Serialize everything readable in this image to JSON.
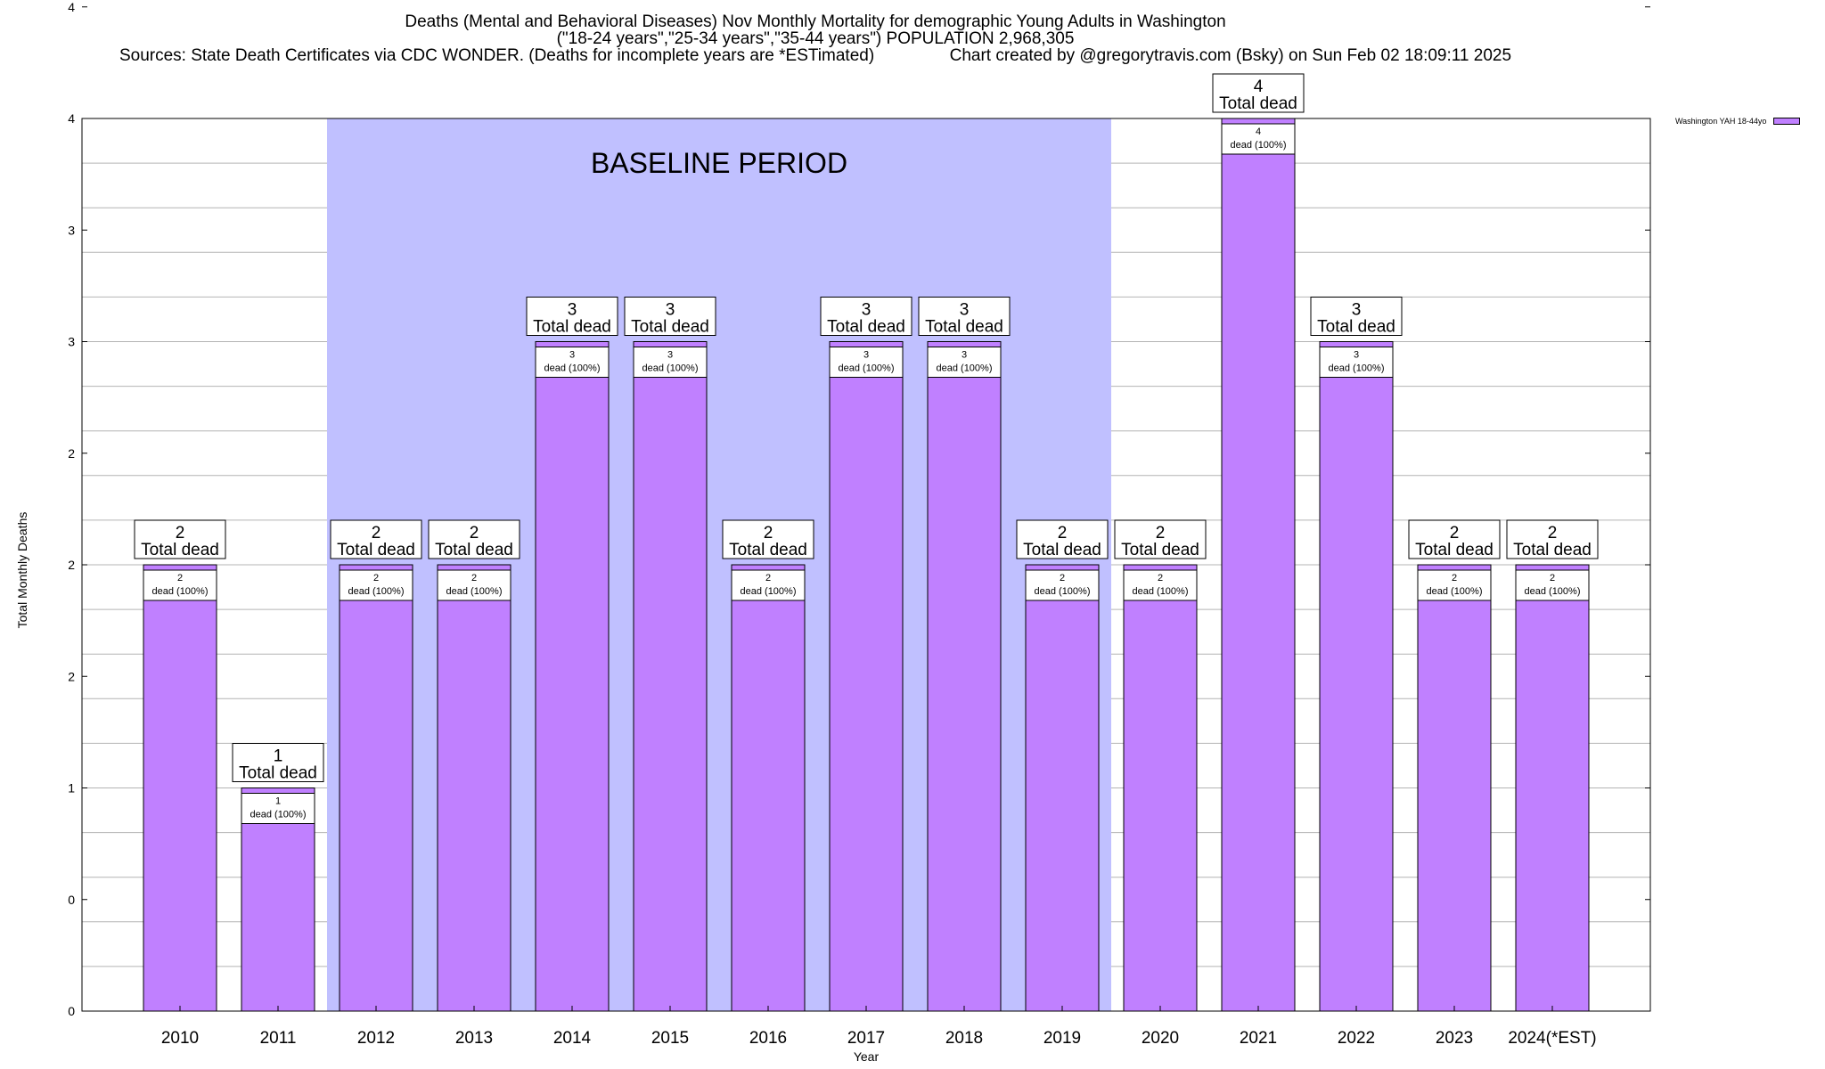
{
  "header": {
    "line1": "Deaths (Mental and Behavioral Diseases) Nov Monthly Mortality for demographic Young Adults in Washington",
    "line2": "(\"18-24 years\",\"25-34 years\",\"35-44 years\") POPULATION 2,968,305",
    "line3": "Sources: State Death Certificates via CDC WONDER. (Deaths for incomplete years are *ESTimated)                Chart created by @gregorytravis.com (Bsky) on Sun Feb 02 18:09:11 2025"
  },
  "legend": {
    "label": "Washington YAH 18-44yo",
    "color": "#c080ff"
  },
  "baseline": {
    "label": "BASELINE PERIOD",
    "from": "2012",
    "to": "2019",
    "color": "#c0c0ff"
  },
  "chart_data": {
    "type": "bar",
    "xlabel": "Year",
    "ylabel": "Total Monthly Deaths",
    "ylim": [
      0,
      4
    ],
    "y_tick_labels": [
      "0",
      "0",
      "1",
      "2",
      "2",
      "2",
      "3",
      "3",
      "4",
      "4"
    ],
    "bar_color": "#c080ff",
    "categories": [
      "2010",
      "2011",
      "2012",
      "2013",
      "2014",
      "2015",
      "2016",
      "2017",
      "2018",
      "2019",
      "2020",
      "2021",
      "2022",
      "2023",
      "2024(*EST)"
    ],
    "series": [
      {
        "name": "Washington YAH 18-44yo",
        "values": [
          2,
          1,
          2,
          2,
          3,
          3,
          2,
          3,
          3,
          2,
          2,
          4,
          3,
          2,
          2
        ]
      }
    ],
    "total_label_suffix": "Total dead",
    "inner_label_suffix": "dead (100%)"
  }
}
